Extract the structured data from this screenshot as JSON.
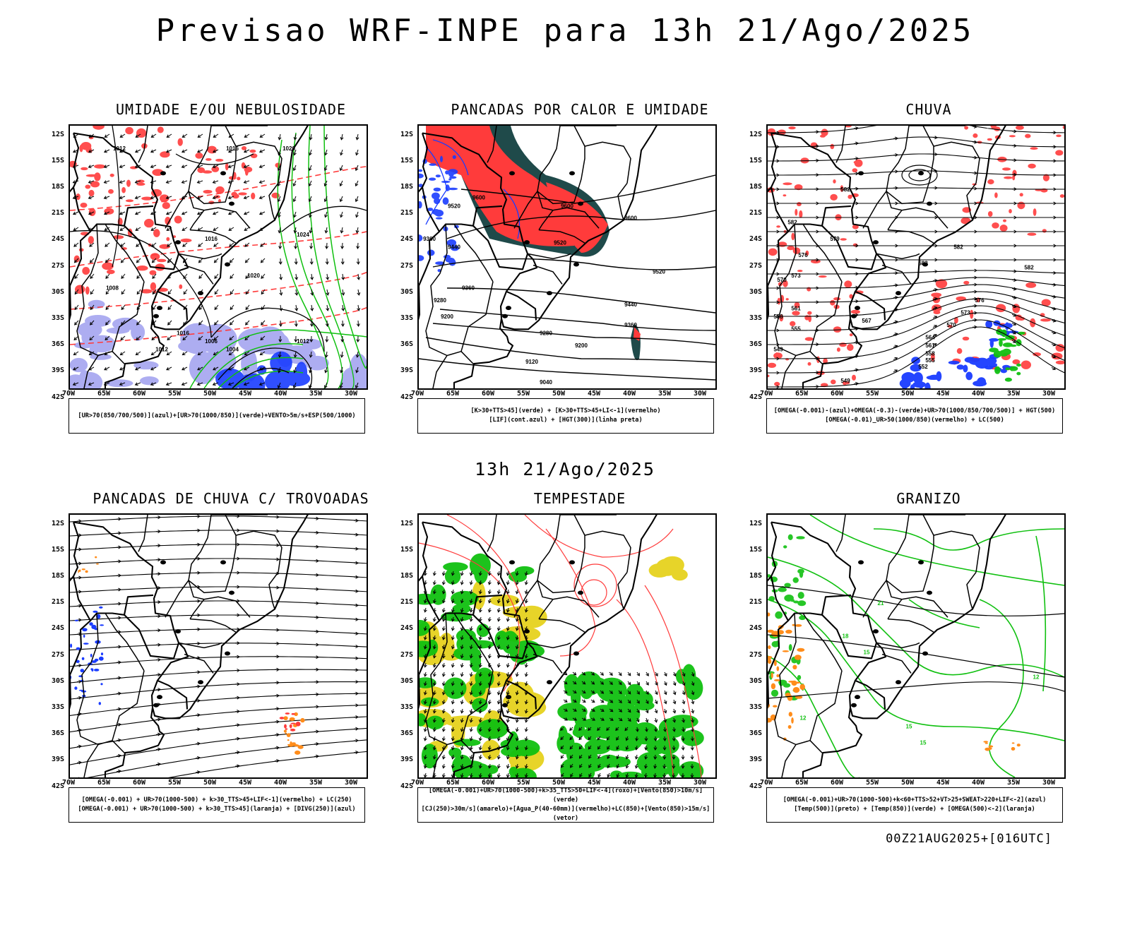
{
  "main_title": "Previsao WRF-INPE  para 13h 21/Ago/2025",
  "mid_title": "13h 21/Ago/2025",
  "footer": "00Z21AUG2025+[016UTC]",
  "lat_labels": [
    "12S",
    "15S",
    "18S",
    "21S",
    "24S",
    "27S",
    "30S",
    "33S",
    "36S",
    "39S",
    "42S"
  ],
  "lon_labels": [
    "70W",
    "65W",
    "60W",
    "55W",
    "50W",
    "45W",
    "40W",
    "35W",
    "30W"
  ],
  "colors": {
    "blue": "#1a3cff",
    "green": "#10c010",
    "red": "#ff3b3b",
    "darkteal": "#1f4a4a",
    "yellow": "#e6d21e",
    "orange": "#ff8c1a",
    "lightblue": "#9999ee"
  },
  "panels": [
    {
      "id": "umidade",
      "title": "UMIDADE E/OU NEBULOSIDADE",
      "legend": [
        "[UR>70(850/700/500)](azul)+[UR>70(1000/850)](verde)+VENTO>5m/s+ESP(500/1000)"
      ],
      "contour_labels": [
        {
          "t": "1012",
          "lon": -63,
          "lat": -13
        },
        {
          "t": "1016",
          "lon": -47,
          "lat": -13
        },
        {
          "t": "1020",
          "lon": -39,
          "lat": -13
        },
        {
          "t": "1016",
          "lon": -50,
          "lat": -24
        },
        {
          "t": "1024",
          "lon": -37,
          "lat": -23.5
        },
        {
          "t": "1020",
          "lon": -44,
          "lat": -28.5
        },
        {
          "t": "1008",
          "lon": -64,
          "lat": -30
        },
        {
          "t": "1016",
          "lon": -54,
          "lat": -35.5
        },
        {
          "t": "1012",
          "lon": -57,
          "lat": -37.5
        },
        {
          "t": "1006",
          "lon": -50,
          "lat": -36.5
        },
        {
          "t": "1004",
          "lon": -47,
          "lat": -37.5
        },
        {
          "t": "1012",
          "lon": -37,
          "lat": -36.5
        }
      ]
    },
    {
      "id": "pancadas_calor",
      "title": "PANCADAS POR CALOR E UMIDADE",
      "legend": [
        "[K>30+TTS>45](verde) + [K>30+TTS>45+LI<-1](vermelho)",
        "[LIF](cont.azul) + [HGT(300)](linha preta)"
      ],
      "contour_labels": [
        {
          "t": "9600",
          "lon": -61.5,
          "lat": -19
        },
        {
          "t": "9520",
          "lon": -65,
          "lat": -20
        },
        {
          "t": "9600",
          "lon": -49,
          "lat": -20
        },
        {
          "t": "9600",
          "lon": -40,
          "lat": -21.5
        },
        {
          "t": "9360",
          "lon": -68.5,
          "lat": -24
        },
        {
          "t": "9440",
          "lon": -65,
          "lat": -25
        },
        {
          "t": "9520",
          "lon": -50,
          "lat": -24.5
        },
        {
          "t": "9520",
          "lon": -36,
          "lat": -28
        },
        {
          "t": "9360",
          "lon": -63,
          "lat": -30
        },
        {
          "t": "9280",
          "lon": -67,
          "lat": -31.5
        },
        {
          "t": "9440",
          "lon": -40,
          "lat": -32
        },
        {
          "t": "9200",
          "lon": -66,
          "lat": -33.5
        },
        {
          "t": "9360",
          "lon": -40,
          "lat": -34.5
        },
        {
          "t": "9280",
          "lon": -52,
          "lat": -35.5
        },
        {
          "t": "9200",
          "lon": -47,
          "lat": -37
        },
        {
          "t": "9120",
          "lon": -54,
          "lat": -39
        },
        {
          "t": "9040",
          "lon": -52,
          "lat": -41.5
        }
      ]
    },
    {
      "id": "chuva",
      "title": "CHUVA",
      "legend": [
        "[OMEGA(-0.001)-(azul)+OMEGA(-0.3)-(verde)+UR>70(1000/850/700/500)] + HGT(500)",
        "[OMEGA(-0.01)_UR>50(1000/850)(vermelho) + LC(500)"
      ],
      "contour_labels": [
        {
          "t": "582",
          "lon": -59,
          "lat": -18
        },
        {
          "t": "582",
          "lon": -66.5,
          "lat": -22
        },
        {
          "t": "579",
          "lon": -60.5,
          "lat": -24
        },
        {
          "t": "576",
          "lon": -65,
          "lat": -26
        },
        {
          "t": "582",
          "lon": -43,
          "lat": -25
        },
        {
          "t": "582",
          "lon": -48,
          "lat": -27
        },
        {
          "t": "582",
          "lon": -33,
          "lat": -27.5
        },
        {
          "t": "573",
          "lon": -66,
          "lat": -28.5
        },
        {
          "t": "570",
          "lon": -68,
          "lat": -29
        },
        {
          "t": "576",
          "lon": -40,
          "lat": -31.5
        },
        {
          "t": "573",
          "lon": -42,
          "lat": -33
        },
        {
          "t": "567",
          "lon": -56,
          "lat": -34
        },
        {
          "t": "570",
          "lon": -44,
          "lat": -34.5
        },
        {
          "t": "561",
          "lon": -66,
          "lat": -32.5
        },
        {
          "t": "558",
          "lon": -68.5,
          "lat": -33.5
        },
        {
          "t": "555",
          "lon": -66,
          "lat": -35
        },
        {
          "t": "564",
          "lon": -47,
          "lat": -36
        },
        {
          "t": "561",
          "lon": -47,
          "lat": -37
        },
        {
          "t": "558",
          "lon": -47,
          "lat": -38
        },
        {
          "t": "555",
          "lon": -47,
          "lat": -38.8
        },
        {
          "t": "552",
          "lon": -48,
          "lat": -39.6
        },
        {
          "t": "549",
          "lon": -68.5,
          "lat": -37.5
        },
        {
          "t": "549",
          "lon": -59,
          "lat": -41.3
        }
      ]
    },
    {
      "id": "trovoadas",
      "title": "PANCADAS DE CHUVA C/ TROVOADAS",
      "legend": [
        "[OMEGA(-0.001) + UR>70(1000-500) + k>30_TTS>45+LIF<-1](vermelho) + LC(250)",
        "[OMEGA(-0.001) + UR>70(1000-500) + k>30_TTS>45](laranja) + [DIVG(250)](azul)"
      ],
      "contour_labels": []
    },
    {
      "id": "tempestade",
      "title": "TEMPESTADE",
      "legend": [
        "[OMEGA(-0.001)+UR>70(1000-500)+k>35_TTS>50+LIF<-4](roxo)+[Vento(850)>10m/s](verde)",
        "[CJ(250)>30m/s](amarelo)+[Agua_P(40-60mm)](vermelho)+LC(850)+[Vento(850)>15m/s](vetor)"
      ],
      "contour_labels": []
    },
    {
      "id": "granizo",
      "title": "GRANIZO",
      "legend": [
        "[OMEGA(-0.001)+UR>70(1000-500)+k<60+TTS>52+VT>25+SWEAT>220+LIF<-2](azul)",
        "[Temp(500)](preto) + [Temp(850)](verde) + [OMEGA(500)<-2](laranja)"
      ],
      "contour_labels": [
        {
          "t": "21",
          "lon": -54,
          "lat": -21
        },
        {
          "t": "18",
          "lon": -59,
          "lat": -25
        },
        {
          "t": "15",
          "lon": -56,
          "lat": -27
        },
        {
          "t": "12",
          "lon": -32,
          "lat": -30
        },
        {
          "t": "12",
          "lon": -65,
          "lat": -35
        },
        {
          "t": "15",
          "lon": -50,
          "lat": -36
        },
        {
          "t": "15",
          "lon": -48,
          "lat": -38
        }
      ]
    }
  ]
}
